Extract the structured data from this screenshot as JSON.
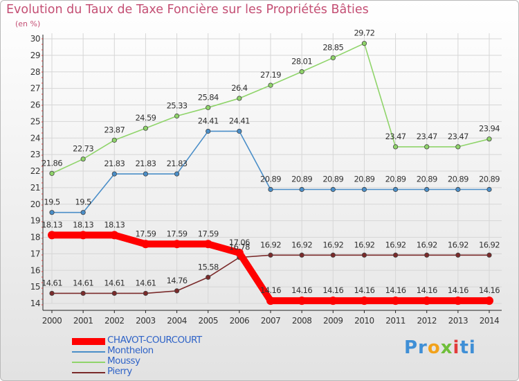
{
  "chart_data": {
    "type": "line",
    "title": "Evolution du Taux de Taxe Foncière sur les Propriétés Bâties",
    "ylabel": "(en %)",
    "xlabel": "",
    "categories": [
      "2000",
      "2001",
      "2002",
      "2003",
      "2004",
      "2005",
      "2006",
      "2007",
      "2008",
      "2009",
      "2010",
      "2011",
      "2012",
      "2013",
      "2014"
    ],
    "ylim": [
      14,
      30
    ],
    "yticks": [
      14,
      15,
      16,
      17,
      18,
      19,
      20,
      21,
      22,
      23,
      24,
      25,
      26,
      27,
      28,
      29,
      30
    ],
    "series": [
      {
        "name": "CHAVOT-COURCOURT",
        "color": "#ff0000",
        "values": [
          18.13,
          18.13,
          18.13,
          17.59,
          17.59,
          17.59,
          17.06,
          14.16,
          14.16,
          14.16,
          14.16,
          14.16,
          14.16,
          14.16,
          14.16
        ],
        "labels": [
          "18.13",
          "18.13",
          "18.13",
          "17.59",
          "17.59",
          "17.59",
          "17.06",
          "14.16",
          "14.16",
          "14.16",
          "14.16",
          "14.16",
          "14.16",
          "14.16",
          "14.16"
        ]
      },
      {
        "name": "Monthelon",
        "color": "#4a8ec8",
        "values": [
          19.5,
          19.5,
          21.83,
          21.83,
          21.83,
          24.41,
          24.41,
          20.89,
          20.89,
          20.89,
          20.89,
          20.89,
          20.89,
          20.89,
          20.89
        ],
        "labels": [
          "19.5",
          "19.5",
          "21.83",
          "21.83",
          "21.83",
          "24.41",
          "24.41",
          "20.89",
          "20.89",
          "20.89",
          "20.89",
          "20.89",
          "20.89",
          "20.89",
          "20.89"
        ]
      },
      {
        "name": "Moussy",
        "color": "#8fd46a",
        "values": [
          21.86,
          22.73,
          23.87,
          24.59,
          25.33,
          25.84,
          26.4,
          27.19,
          28.01,
          28.85,
          29.72,
          23.47,
          23.47,
          23.47,
          23.94
        ],
        "labels": [
          "21.86",
          "22.73",
          "23.87",
          "24.59",
          "25.33",
          "25.84",
          "26.4",
          "27.19",
          "28.01",
          "28.85",
          "29.72",
          "23.47",
          "23.47",
          "23.47",
          "23.94"
        ]
      },
      {
        "name": "Pierry",
        "color": "#7a2a2a",
        "values": [
          14.61,
          14.61,
          14.61,
          14.61,
          14.76,
          15.58,
          16.78,
          16.92,
          16.92,
          16.92,
          16.92,
          16.92,
          16.92,
          16.92,
          16.92
        ],
        "labels": [
          "14.61",
          "14.61",
          "14.61",
          "14.61",
          "14.76",
          "15.58",
          "16.78",
          "16.92",
          "16.92",
          "16.92",
          "16.92",
          "16.92",
          "16.92",
          "16.92",
          "16.92"
        ]
      }
    ],
    "grid": true,
    "legend_position": "bottom-left"
  },
  "branding": {
    "logo_parts": [
      {
        "text": "Pr",
        "color": "#3f8fd6"
      },
      {
        "text": "o",
        "color": "#f2a21b"
      },
      {
        "text": "x",
        "color": "#6fbf3a"
      },
      {
        "text": "i",
        "color": "#e23b3b"
      },
      {
        "text": "ti",
        "color": "#3f8fd6"
      }
    ]
  }
}
